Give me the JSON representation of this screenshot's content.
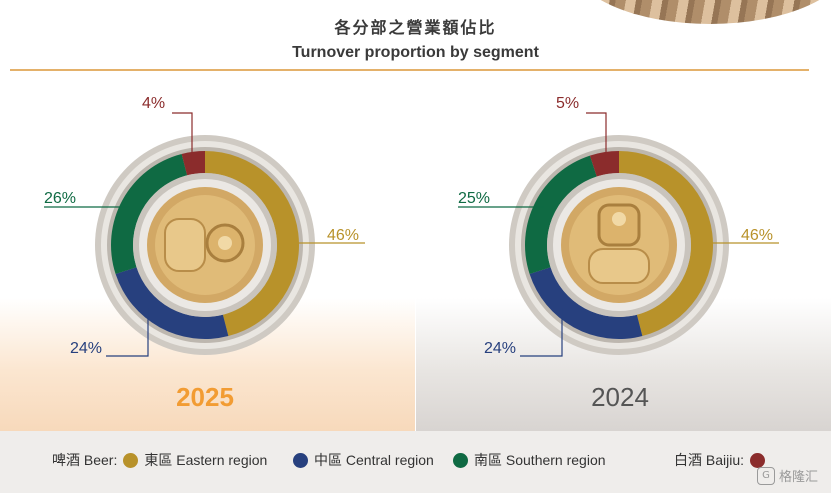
{
  "header": {
    "title_zh": "各分部之營業額佔比",
    "title_en": "Turnover proportion by segment"
  },
  "colors": {
    "eastern": "#b8922a",
    "central": "#27407e",
    "southern": "#0f6a43",
    "baijiu": "#8b2c2c"
  },
  "chart_data": [
    {
      "type": "pie",
      "title": "2025",
      "categories": [
        "東區 Eastern region",
        "中區 Central region",
        "南區 Southern region",
        "白酒 Baijiu"
      ],
      "values": [
        46,
        24,
        26,
        4
      ],
      "labels": [
        "46%",
        "24%",
        "26%",
        "4%"
      ]
    },
    {
      "type": "pie",
      "title": "2024",
      "categories": [
        "東區 Eastern region",
        "中區 Central region",
        "南區 Southern region",
        "白酒 Baijiu"
      ],
      "values": [
        46,
        24,
        25,
        5
      ],
      "labels": [
        "46%",
        "24%",
        "25%",
        "5%"
      ]
    }
  ],
  "legend": {
    "beer_label": "啤酒 Beer:",
    "eastern": "東區 Eastern region",
    "central": "中區 Central region",
    "southern": "南區 Southern region",
    "baijiu_label": "白酒 Baijiu:"
  },
  "watermark": "格隆汇"
}
